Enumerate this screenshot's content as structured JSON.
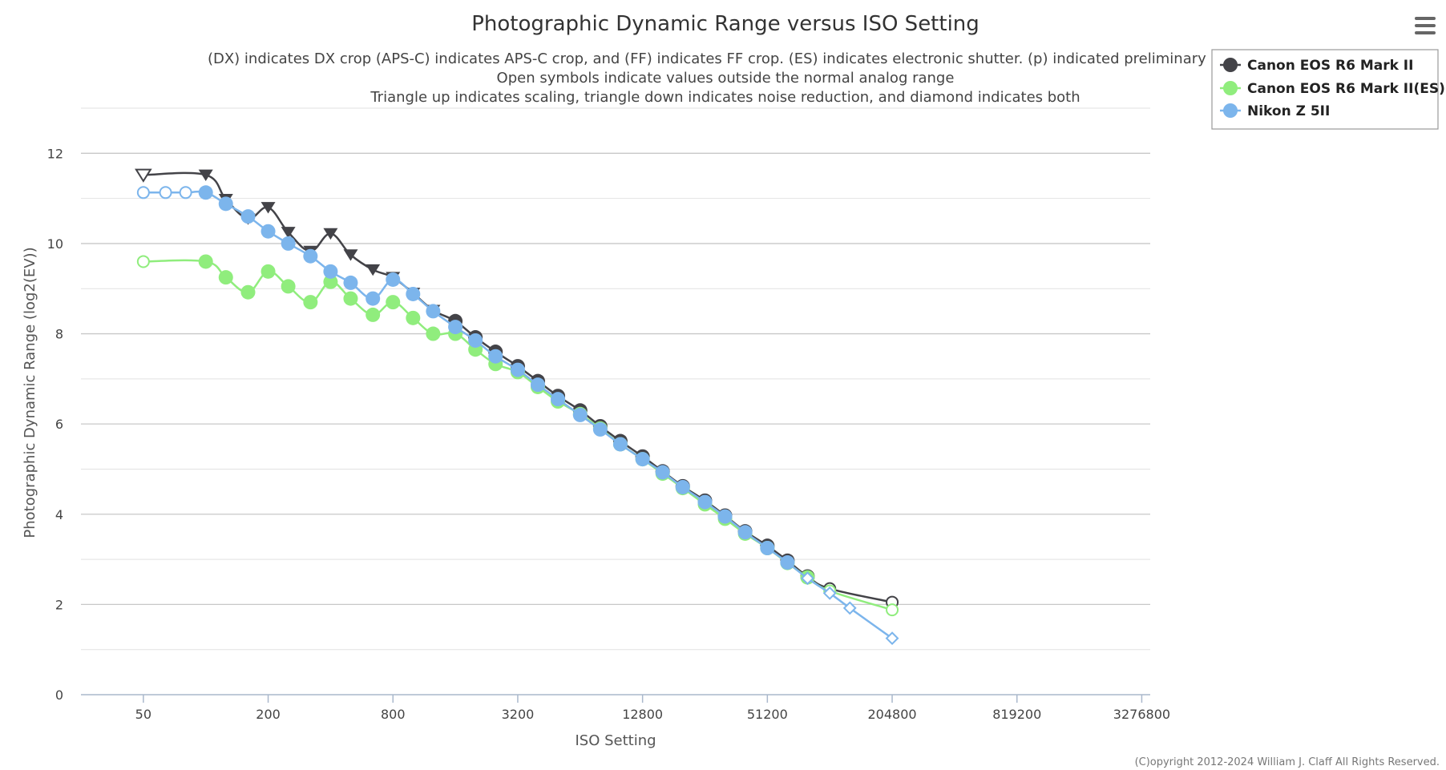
{
  "title": "Photographic Dynamic Range versus ISO Setting",
  "subtitle_lines": [
    "(DX) indicates DX crop (APS-C) indicates APS-C crop, and (FF) indicates FF crop. (ES) indicates electronic shutter. (p) indicated preliminary data",
    "Open symbols indicate values outside the normal analog range",
    "Triangle up indicates scaling, triangle down indicates noise reduction, and diamond indicates both"
  ],
  "credits": "(C)opyright 2012-2024 William J. Claff All Rights Reserved.",
  "menu_icon": "hamburger-menu-icon",
  "chart_data": {
    "type": "line",
    "title": "Photographic Dynamic Range versus ISO Setting",
    "xlabel": "ISO Setting",
    "ylabel": "Photographic Dynamic Range (log2(EV))",
    "x_scale": "log2",
    "x_ticks": [
      "50",
      "200",
      "800",
      "3200",
      "12800",
      "51200",
      "204800",
      "819200",
      "3276800"
    ],
    "x_tick_values": [
      50,
      200,
      800,
      3200,
      12800,
      51200,
      204800,
      819200,
      3276800
    ],
    "xlim": [
      25,
      3600000
    ],
    "y_ticks": [
      "0",
      "2",
      "4",
      "6",
      "8",
      "10",
      "12"
    ],
    "y_tick_values": [
      0,
      2,
      4,
      6,
      8,
      10,
      12
    ],
    "ylim": [
      0,
      13
    ],
    "grid": true,
    "legend_position": "top-right",
    "series": [
      {
        "name": "Canon EOS R6 Mark II",
        "color": "#434348",
        "points": [
          {
            "iso": 50,
            "y": 11.52,
            "marker": "triangle-down",
            "open": true
          },
          {
            "iso": 100,
            "y": 11.52,
            "marker": "triangle-down",
            "open": false
          },
          {
            "iso": 125,
            "y": 10.98,
            "marker": "triangle-down",
            "open": false
          },
          {
            "iso": 160,
            "y": 10.55,
            "marker": "triangle-down",
            "open": false
          },
          {
            "iso": 200,
            "y": 10.8,
            "marker": "triangle-down",
            "open": false
          },
          {
            "iso": 250,
            "y": 10.25,
            "marker": "triangle-down",
            "open": false
          },
          {
            "iso": 320,
            "y": 9.83,
            "marker": "triangle-down",
            "open": false
          },
          {
            "iso": 400,
            "y": 10.22,
            "marker": "triangle-down",
            "open": false
          },
          {
            "iso": 500,
            "y": 9.75,
            "marker": "triangle-down",
            "open": false
          },
          {
            "iso": 640,
            "y": 9.42,
            "marker": "triangle-down",
            "open": false
          },
          {
            "iso": 800,
            "y": 9.25,
            "marker": "triangle-down",
            "open": false
          },
          {
            "iso": 1000,
            "y": 8.9,
            "marker": "triangle-down",
            "open": false
          },
          {
            "iso": 1250,
            "y": 8.52,
            "marker": "triangle-down",
            "open": false
          },
          {
            "iso": 1600,
            "y": 8.28,
            "marker": "circle",
            "open": false
          },
          {
            "iso": 2000,
            "y": 7.92,
            "marker": "circle",
            "open": false
          },
          {
            "iso": 2500,
            "y": 7.6,
            "marker": "circle",
            "open": false
          },
          {
            "iso": 3200,
            "y": 7.28,
            "marker": "circle",
            "open": false
          },
          {
            "iso": 4000,
            "y": 6.95,
            "marker": "circle",
            "open": false
          },
          {
            "iso": 5000,
            "y": 6.62,
            "marker": "circle",
            "open": false
          },
          {
            "iso": 6400,
            "y": 6.3,
            "marker": "circle",
            "open": false
          },
          {
            "iso": 8000,
            "y": 5.95,
            "marker": "circle",
            "open": false
          },
          {
            "iso": 10000,
            "y": 5.62,
            "marker": "circle",
            "open": false
          },
          {
            "iso": 12800,
            "y": 5.28,
            "marker": "circle",
            "open": false
          },
          {
            "iso": 16000,
            "y": 4.95,
            "marker": "circle",
            "open": false
          },
          {
            "iso": 20000,
            "y": 4.62,
            "marker": "circle",
            "open": false
          },
          {
            "iso": 25600,
            "y": 4.3,
            "marker": "circle",
            "open": false
          },
          {
            "iso": 32000,
            "y": 3.97,
            "marker": "circle",
            "open": false
          },
          {
            "iso": 40000,
            "y": 3.62,
            "marker": "circle",
            "open": false
          },
          {
            "iso": 51200,
            "y": 3.3,
            "marker": "circle",
            "open": false
          },
          {
            "iso": 64000,
            "y": 2.97,
            "marker": "circle",
            "open": false
          },
          {
            "iso": 80000,
            "y": 2.62,
            "marker": "circle",
            "open": false
          },
          {
            "iso": 102400,
            "y": 2.35,
            "marker": "circle",
            "open": true
          },
          {
            "iso": 204800,
            "y": 2.05,
            "marker": "circle",
            "open": true
          }
        ]
      },
      {
        "name": "Canon EOS R6 Mark II(ES)",
        "color": "#90ed7d",
        "points": [
          {
            "iso": 50,
            "y": 9.6,
            "marker": "circle",
            "open": true
          },
          {
            "iso": 100,
            "y": 9.6,
            "marker": "circle",
            "open": false
          },
          {
            "iso": 125,
            "y": 9.25,
            "marker": "circle",
            "open": false
          },
          {
            "iso": 160,
            "y": 8.92,
            "marker": "circle",
            "open": false
          },
          {
            "iso": 200,
            "y": 9.38,
            "marker": "circle",
            "open": false
          },
          {
            "iso": 250,
            "y": 9.05,
            "marker": "circle",
            "open": false
          },
          {
            "iso": 320,
            "y": 8.7,
            "marker": "circle",
            "open": false
          },
          {
            "iso": 400,
            "y": 9.15,
            "marker": "circle",
            "open": false
          },
          {
            "iso": 500,
            "y": 8.78,
            "marker": "circle",
            "open": false
          },
          {
            "iso": 640,
            "y": 8.42,
            "marker": "circle",
            "open": false
          },
          {
            "iso": 800,
            "y": 8.7,
            "marker": "circle",
            "open": false
          },
          {
            "iso": 1000,
            "y": 8.35,
            "marker": "circle",
            "open": false
          },
          {
            "iso": 1250,
            "y": 8.0,
            "marker": "circle",
            "open": false
          },
          {
            "iso": 1600,
            "y": 8.0,
            "marker": "circle",
            "open": false
          },
          {
            "iso": 2000,
            "y": 7.65,
            "marker": "circle",
            "open": false
          },
          {
            "iso": 2500,
            "y": 7.33,
            "marker": "circle",
            "open": false
          },
          {
            "iso": 3200,
            "y": 7.15,
            "marker": "circle",
            "open": false
          },
          {
            "iso": 4000,
            "y": 6.82,
            "marker": "circle",
            "open": false
          },
          {
            "iso": 5000,
            "y": 6.5,
            "marker": "circle",
            "open": false
          },
          {
            "iso": 6400,
            "y": 6.22,
            "marker": "circle",
            "open": false
          },
          {
            "iso": 8000,
            "y": 5.9,
            "marker": "circle",
            "open": false
          },
          {
            "iso": 10000,
            "y": 5.55,
            "marker": "circle",
            "open": false
          },
          {
            "iso": 12800,
            "y": 5.22,
            "marker": "circle",
            "open": false
          },
          {
            "iso": 16000,
            "y": 4.9,
            "marker": "circle",
            "open": false
          },
          {
            "iso": 20000,
            "y": 4.58,
            "marker": "circle",
            "open": false
          },
          {
            "iso": 25600,
            "y": 4.22,
            "marker": "circle",
            "open": false
          },
          {
            "iso": 32000,
            "y": 3.9,
            "marker": "circle",
            "open": false
          },
          {
            "iso": 40000,
            "y": 3.57,
            "marker": "circle",
            "open": false
          },
          {
            "iso": 51200,
            "y": 3.25,
            "marker": "circle",
            "open": false
          },
          {
            "iso": 64000,
            "y": 2.92,
            "marker": "circle",
            "open": false
          },
          {
            "iso": 80000,
            "y": 2.6,
            "marker": "circle",
            "open": false
          },
          {
            "iso": 102400,
            "y": 2.3,
            "marker": "circle",
            "open": true
          },
          {
            "iso": 204800,
            "y": 1.88,
            "marker": "circle",
            "open": true
          }
        ]
      },
      {
        "name": "Nikon Z 5II",
        "color": "#7cb5ec",
        "points": [
          {
            "iso": 50,
            "y": 11.13,
            "marker": "circle",
            "open": true
          },
          {
            "iso": 64,
            "y": 11.13,
            "marker": "circle",
            "open": true
          },
          {
            "iso": 80,
            "y": 11.13,
            "marker": "circle",
            "open": true
          },
          {
            "iso": 100,
            "y": 11.13,
            "marker": "circle",
            "open": false
          },
          {
            "iso": 125,
            "y": 10.88,
            "marker": "circle",
            "open": false
          },
          {
            "iso": 160,
            "y": 10.6,
            "marker": "circle",
            "open": false
          },
          {
            "iso": 200,
            "y": 10.27,
            "marker": "circle",
            "open": false
          },
          {
            "iso": 250,
            "y": 10.0,
            "marker": "circle",
            "open": false
          },
          {
            "iso": 320,
            "y": 9.72,
            "marker": "circle",
            "open": false
          },
          {
            "iso": 400,
            "y": 9.38,
            "marker": "circle",
            "open": false
          },
          {
            "iso": 500,
            "y": 9.13,
            "marker": "circle",
            "open": false
          },
          {
            "iso": 640,
            "y": 8.78,
            "marker": "circle",
            "open": false
          },
          {
            "iso": 800,
            "y": 9.2,
            "marker": "circle",
            "open": false
          },
          {
            "iso": 1000,
            "y": 8.88,
            "marker": "circle",
            "open": false
          },
          {
            "iso": 1250,
            "y": 8.5,
            "marker": "circle",
            "open": false
          },
          {
            "iso": 1600,
            "y": 8.15,
            "marker": "circle",
            "open": false
          },
          {
            "iso": 2000,
            "y": 7.85,
            "marker": "circle",
            "open": false
          },
          {
            "iso": 2500,
            "y": 7.5,
            "marker": "circle",
            "open": false
          },
          {
            "iso": 3200,
            "y": 7.2,
            "marker": "circle",
            "open": false
          },
          {
            "iso": 4000,
            "y": 6.87,
            "marker": "circle",
            "open": false
          },
          {
            "iso": 5000,
            "y": 6.55,
            "marker": "circle",
            "open": false
          },
          {
            "iso": 6400,
            "y": 6.2,
            "marker": "circle",
            "open": false
          },
          {
            "iso": 8000,
            "y": 5.88,
            "marker": "circle",
            "open": false
          },
          {
            "iso": 10000,
            "y": 5.55,
            "marker": "circle",
            "open": false
          },
          {
            "iso": 12800,
            "y": 5.22,
            "marker": "circle",
            "open": false
          },
          {
            "iso": 16000,
            "y": 4.93,
            "marker": "circle",
            "open": false
          },
          {
            "iso": 20000,
            "y": 4.6,
            "marker": "circle",
            "open": false
          },
          {
            "iso": 25600,
            "y": 4.27,
            "marker": "circle",
            "open": false
          },
          {
            "iso": 32000,
            "y": 3.95,
            "marker": "circle",
            "open": false
          },
          {
            "iso": 40000,
            "y": 3.6,
            "marker": "circle",
            "open": false
          },
          {
            "iso": 51200,
            "y": 3.25,
            "marker": "circle",
            "open": false
          },
          {
            "iso": 64000,
            "y": 2.93,
            "marker": "circle",
            "open": false
          },
          {
            "iso": 80000,
            "y": 2.58,
            "marker": "diamond",
            "open": true
          },
          {
            "iso": 102400,
            "y": 2.25,
            "marker": "diamond",
            "open": true
          },
          {
            "iso": 128000,
            "y": 1.92,
            "marker": "diamond",
            "open": true
          },
          {
            "iso": 204800,
            "y": 1.25,
            "marker": "diamond",
            "open": true
          }
        ]
      }
    ]
  }
}
